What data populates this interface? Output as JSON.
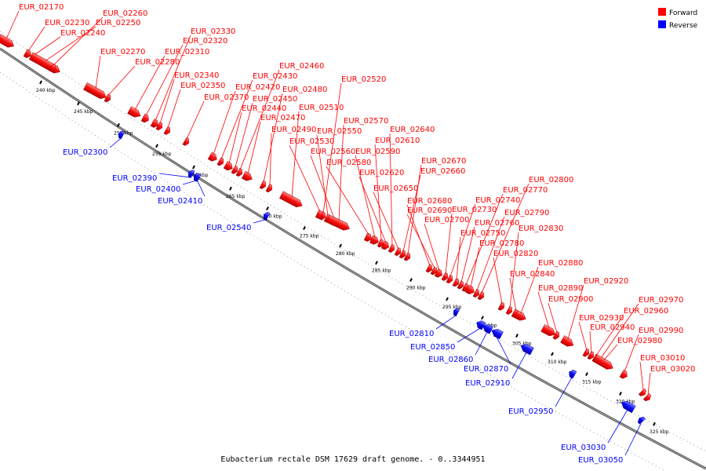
{
  "caption": "Eubacterium rectale DSM 17629 draft genome. - 0..3344951",
  "legend": {
    "forward_label": "Forward",
    "reverse_label": "Reverse",
    "forward_color": "#ff0000",
    "reverse_color": "#0000ff"
  },
  "ticks": [
    "240 kbp",
    "245 kbp",
    "250 kbp",
    "255 kbp",
    "260 kbp",
    "265 kbp",
    "270 kbp",
    "275 kbp",
    "280 kbp",
    "285 kbp",
    "290 kbp",
    "295 kbp",
    "300 kbp",
    "305 kbp",
    "310 kbp",
    "315 kbp",
    "320 kbp",
    "325 kbp"
  ],
  "forward_genes": [
    "EUR_02170",
    "EUR_02230",
    "EUR_02240",
    "EUR_02250",
    "EUR_02260",
    "EUR_02270",
    "EUR_02280",
    "EUR_02310",
    "EUR_02320",
    "EUR_02330",
    "EUR_02340",
    "EUR_02350",
    "EUR_02370",
    "EUR_02420",
    "EUR_02430",
    "EUR_02440",
    "EUR_02450",
    "EUR_02460",
    "EUR_02470",
    "EUR_02480",
    "EUR_02490",
    "EUR_02510",
    "EUR_02520",
    "EUR_02530",
    "EUR_02550",
    "EUR_02560",
    "EUR_02570",
    "EUR_02580",
    "EUR_02590",
    "EUR_02610",
    "EUR_02620",
    "EUR_02640",
    "EUR_02650",
    "EUR_02660",
    "EUR_02670",
    "EUR_02680",
    "EUR_02690",
    "EUR_02700",
    "EUR_02730",
    "EUR_02740",
    "EUR_02750",
    "EUR_02760",
    "EUR_02770",
    "EUR_02780",
    "EUR_02790",
    "EUR_02800",
    "EUR_02820",
    "EUR_02830",
    "EUR_02840",
    "EUR_02880",
    "EUR_02890",
    "EUR_02900",
    "EUR_02920",
    "EUR_02930",
    "EUR_02940",
    "EUR_02960",
    "EUR_02970",
    "EUR_02980",
    "EUR_02990",
    "EUR_03010",
    "EUR_03020"
  ],
  "reverse_genes": [
    "EUR_02300",
    "EUR_02390",
    "EUR_02400",
    "EUR_02410",
    "EUR_02540",
    "EUR_02810",
    "EUR_02850",
    "EUR_02860",
    "EUR_02870",
    "EUR_02910",
    "EUR_02950",
    "EUR_03030",
    "EUR_03050"
  ]
}
